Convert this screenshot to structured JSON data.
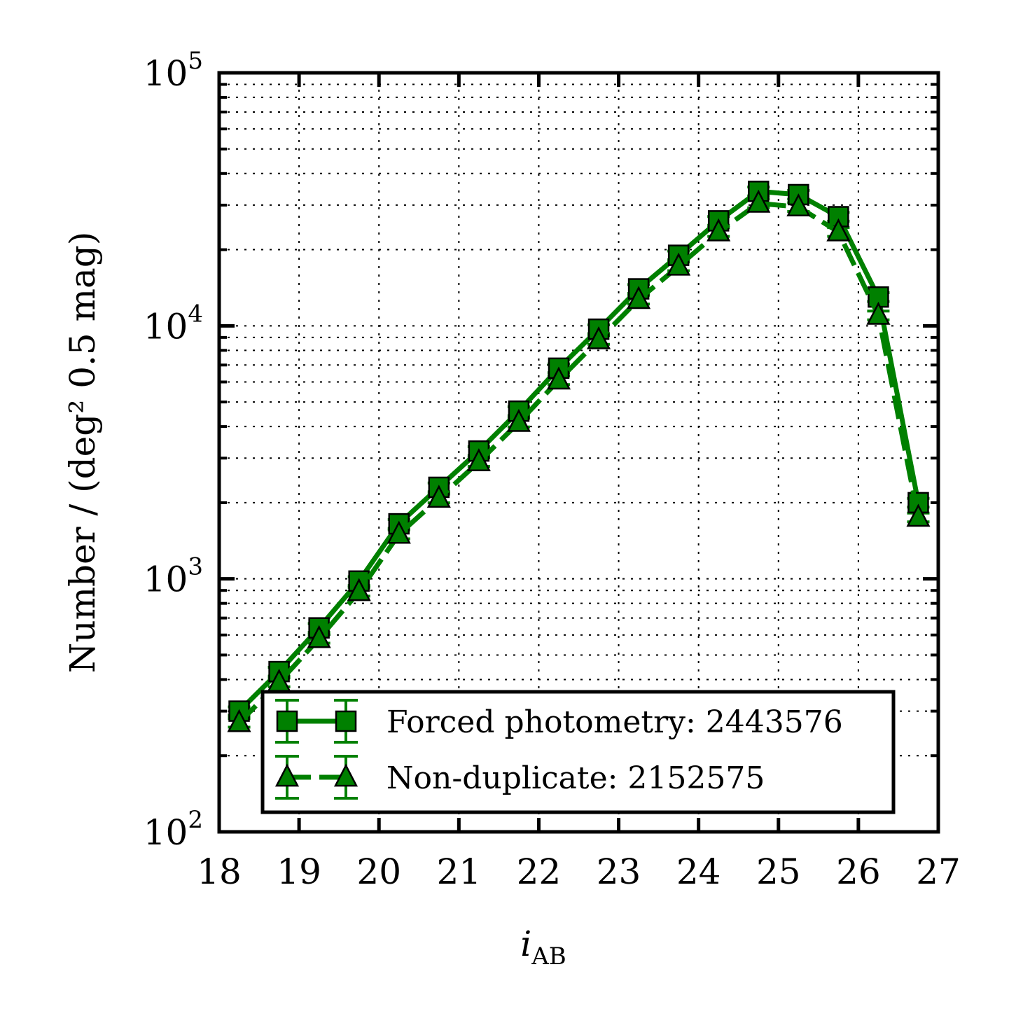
{
  "chart_data": {
    "type": "line",
    "xlabel": "i",
    "xlabel_sub": "AB",
    "ylabel": "Number / (deg² 0.5 mag)",
    "xlim": [
      18,
      27
    ],
    "ylim": [
      100,
      100000
    ],
    "yscale": "log",
    "grid": true,
    "legend_position": "lower-right",
    "x_ticks": [
      "18",
      "19",
      "20",
      "21",
      "22",
      "23",
      "24",
      "25",
      "26",
      "27"
    ],
    "y_ticks": [
      {
        "value": 100,
        "base": "10",
        "exp": "2"
      },
      {
        "value": 1000,
        "base": "10",
        "exp": "3"
      },
      {
        "value": 10000,
        "base": "10",
        "exp": "4"
      },
      {
        "value": 100000,
        "base": "10",
        "exp": "5"
      }
    ],
    "x": [
      18.25,
      18.75,
      19.25,
      19.75,
      20.25,
      20.75,
      21.25,
      21.75,
      22.25,
      22.75,
      23.25,
      23.75,
      24.25,
      24.75,
      25.25,
      25.75,
      26.25,
      26.75
    ],
    "series": [
      {
        "name": "Forced photometry: 2443576",
        "marker": "square",
        "linestyle": "solid",
        "color": "#008000",
        "values": [
          300,
          430,
          640,
          980,
          1650,
          2300,
          3200,
          4600,
          6800,
          9700,
          14000,
          19000,
          26000,
          34000,
          33000,
          27000,
          13000,
          2000
        ]
      },
      {
        "name": "Non-duplicate: 2152575",
        "marker": "triangle",
        "linestyle": "dashed",
        "color": "#008000",
        "values": [
          270,
          390,
          580,
          890,
          1500,
          2080,
          2900,
          4150,
          6100,
          8800,
          12700,
          17200,
          23500,
          30500,
          29500,
          23500,
          11000,
          1750
        ]
      }
    ]
  }
}
